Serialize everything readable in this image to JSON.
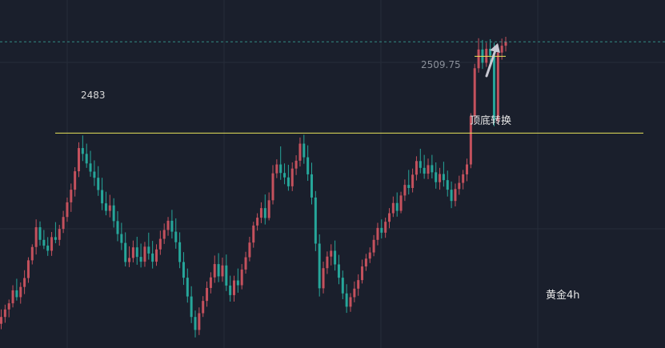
{
  "chart_data": {
    "type": "candlestick",
    "title": "黄金4h",
    "colors": {
      "background": "#1a1f2c",
      "up": "#c4515d",
      "down": "#26a69a",
      "level_line": "#e8e35a",
      "current_price_line": "#3aa89a",
      "arrow": "#c8c8d2",
      "grid": "#262c3a"
    },
    "price_range": [
      2420,
      2522
    ],
    "grid": true,
    "annotations": {
      "level_label": "2483",
      "level_value": 2483,
      "current_price_label": "2509.75",
      "current_price_value": 2509.75,
      "note": "顶底转换",
      "minor_level_value": 2505.5
    },
    "candles": [
      [
        2427.1,
        2431.3,
        2425.5,
        2429.1
      ],
      [
        2429.1,
        2432.7,
        2427.4,
        2431.3
      ],
      [
        2431.3,
        2434.2,
        2429.0,
        2433.1
      ],
      [
        2433.1,
        2438.4,
        2431.9,
        2436.9
      ],
      [
        2436.9,
        2440.3,
        2433.9,
        2434.9
      ],
      [
        2434.9,
        2439.2,
        2433.0,
        2437.9
      ],
      [
        2437.9,
        2442.8,
        2435.8,
        2440.5
      ],
      [
        2440.5,
        2446.6,
        2439.1,
        2445.7
      ],
      [
        2445.7,
        2450.4,
        2444.5,
        2449.6
      ],
      [
        2449.6,
        2457.7,
        2447.4,
        2455.4
      ],
      [
        2455.4,
        2457.1,
        2450.0,
        2451.7
      ],
      [
        2451.7,
        2454.6,
        2449.0,
        2450.0
      ],
      [
        2450.0,
        2452.5,
        2447.0,
        2448.5
      ],
      [
        2448.5,
        2454.0,
        2447.0,
        2452.5
      ],
      [
        2452.5,
        2456.9,
        2450.7,
        2451.7
      ],
      [
        2451.7,
        2456.1,
        2450.0,
        2454.9
      ],
      [
        2454.9,
        2460.2,
        2453.7,
        2458.4
      ],
      [
        2458.4,
        2464.1,
        2457.0,
        2462.7
      ],
      [
        2462.7,
        2468.2,
        2459.9,
        2466.4
      ],
      [
        2466.4,
        2473.0,
        2464.4,
        2471.8
      ],
      [
        2471.8,
        2480.3,
        2470.1,
        2478.6
      ],
      [
        2478.6,
        2482.3,
        2474.8,
        2476.9
      ],
      [
        2476.9,
        2479.9,
        2472.8,
        2474.1
      ],
      [
        2474.1,
        2477.8,
        2470.2,
        2471.7
      ],
      [
        2471.7,
        2475.0,
        2467.5,
        2469.9
      ],
      [
        2469.9,
        2473.3,
        2464.6,
        2466.3
      ],
      [
        2466.3,
        2469.9,
        2460.4,
        2462.4
      ],
      [
        2462.4,
        2465.8,
        2458.9,
        2460.2
      ],
      [
        2460.2,
        2464.9,
        2458.3,
        2461.8
      ],
      [
        2461.8,
        2463.9,
        2455.3,
        2457.2
      ],
      [
        2457.2,
        2460.1,
        2451.3,
        2453.4
      ],
      [
        2453.4,
        2456.7,
        2448.7,
        2450.8
      ],
      [
        2450.8,
        2453.9,
        2443.9,
        2445.2
      ],
      [
        2445.2,
        2449.8,
        2443.7,
        2446.4
      ],
      [
        2446.4,
        2451.5,
        2445.1,
        2449.5
      ],
      [
        2449.5,
        2452.6,
        2444.4,
        2446.7
      ],
      [
        2446.7,
        2450.6,
        2443.6,
        2445.3
      ],
      [
        2445.3,
        2451.1,
        2443.8,
        2449.7
      ],
      [
        2449.7,
        2453.8,
        2445.9,
        2447.7
      ],
      [
        2447.7,
        2451.4,
        2443.3,
        2445.3
      ],
      [
        2445.3,
        2450.4,
        2444.1,
        2448.9
      ],
      [
        2448.9,
        2454.4,
        2447.3,
        2452.0
      ],
      [
        2452.0,
        2456.5,
        2450.5,
        2454.6
      ],
      [
        2454.6,
        2458.4,
        2452.9,
        2457.3
      ],
      [
        2457.3,
        2460.5,
        2452.1,
        2454.1
      ],
      [
        2454.1,
        2458.0,
        2449.1,
        2451.0
      ],
      [
        2451.0,
        2453.9,
        2443.4,
        2445.2
      ],
      [
        2445.2,
        2448.1,
        2438.5,
        2440.6
      ],
      [
        2440.6,
        2443.3,
        2433.3,
        2435.1
      ],
      [
        2435.1,
        2438.1,
        2427.3,
        2429.1
      ],
      [
        2429.1,
        2431.0,
        2423.1,
        2425.3
      ],
      [
        2425.3,
        2431.9,
        2423.8,
        2430.2
      ],
      [
        2430.2,
        2435.2,
        2429.1,
        2433.8
      ],
      [
        2433.8,
        2439.5,
        2432.1,
        2437.6
      ],
      [
        2437.6,
        2442.2,
        2436.0,
        2440.7
      ],
      [
        2440.7,
        2447.1,
        2439.1,
        2444.6
      ],
      [
        2444.6,
        2447.8,
        2439.3,
        2441.0
      ],
      [
        2441.0,
        2446.5,
        2439.4,
        2444.2
      ],
      [
        2444.2,
        2447.4,
        2436.7,
        2438.3
      ],
      [
        2438.3,
        2441.2,
        2433.6,
        2435.5
      ],
      [
        2435.5,
        2441.2,
        2433.6,
        2439.8
      ],
      [
        2439.8,
        2443.3,
        2436.2,
        2438.4
      ],
      [
        2438.4,
        2444.6,
        2437.2,
        2443.0
      ],
      [
        2443.0,
        2448.2,
        2441.8,
        2446.6
      ],
      [
        2446.6,
        2452.6,
        2445.4,
        2450.9
      ],
      [
        2450.9,
        2457.0,
        2449.4,
        2455.9
      ],
      [
        2455.9,
        2459.5,
        2454.4,
        2458.2
      ],
      [
        2458.2,
        2462.7,
        2456.6,
        2461.0
      ],
      [
        2461.0,
        2465.0,
        2456.2,
        2458.1
      ],
      [
        2458.1,
        2465.6,
        2457.4,
        2463.3
      ],
      [
        2463.3,
        2473.6,
        2462.1,
        2471.2
      ],
      [
        2471.2,
        2475.3,
        2469.8,
        2473.8
      ],
      [
        2473.8,
        2479.1,
        2469.3,
        2471.3
      ],
      [
        2471.3,
        2474.1,
        2468.0,
        2470.0
      ],
      [
        2470.0,
        2473.7,
        2466.1,
        2467.4
      ],
      [
        2467.4,
        2474.4,
        2466.0,
        2472.6
      ],
      [
        2472.6,
        2476.5,
        2470.7,
        2474.9
      ],
      [
        2474.9,
        2481.7,
        2473.2,
        2479.9
      ],
      [
        2479.9,
        2482.5,
        2474.0,
        2475.9
      ],
      [
        2475.9,
        2479.4,
        2469.0,
        2470.9
      ],
      [
        2470.9,
        2474.3,
        2462.1,
        2464.1
      ],
      [
        2464.1,
        2466.0,
        2448.4,
        2450.6
      ],
      [
        2450.6,
        2453.3,
        2435.1,
        2437.5
      ],
      [
        2437.5,
        2445.3,
        2436.0,
        2443.4
      ],
      [
        2443.4,
        2448.3,
        2441.7,
        2446.8
      ],
      [
        2446.8,
        2450.4,
        2444.2,
        2448.5
      ],
      [
        2448.5,
        2451.5,
        2442.7,
        2444.5
      ],
      [
        2444.5,
        2447.3,
        2438.7,
        2440.6
      ],
      [
        2440.6,
        2442.7,
        2434.3,
        2436.0
      ],
      [
        2436.0,
        2438.7,
        2430.3,
        2432.1
      ],
      [
        2432.1,
        2436.1,
        2430.6,
        2434.9
      ],
      [
        2434.9,
        2439.5,
        2433.4,
        2437.4
      ],
      [
        2437.4,
        2441.6,
        2435.3,
        2439.9
      ],
      [
        2439.9,
        2445.9,
        2438.9,
        2443.9
      ],
      [
        2443.9,
        2447.6,
        2442.6,
        2446.2
      ],
      [
        2446.2,
        2449.5,
        2444.9,
        2448.0
      ],
      [
        2448.0,
        2453.1,
        2446.9,
        2451.7
      ],
      [
        2451.7,
        2456.7,
        2450.1,
        2455.2
      ],
      [
        2455.2,
        2457.7,
        2452.1,
        2453.8
      ],
      [
        2453.8,
        2458.2,
        2452.3,
        2457.0
      ],
      [
        2457.0,
        2461.0,
        2455.1,
        2459.5
      ],
      [
        2459.5,
        2464.4,
        2458.4,
        2462.5
      ],
      [
        2462.5,
        2465.6,
        2458.5,
        2460.2
      ],
      [
        2460.2,
        2465.8,
        2459.5,
        2464.7
      ],
      [
        2464.7,
        2469.4,
        2463.1,
        2467.8
      ],
      [
        2467.8,
        2472.2,
        2465.0,
        2466.9
      ],
      [
        2466.9,
        2472.6,
        2465.6,
        2470.8
      ],
      [
        2470.8,
        2476.2,
        2469.1,
        2474.8
      ],
      [
        2474.8,
        2478.4,
        2471.2,
        2472.8
      ],
      [
        2472.8,
        2476.6,
        2469.6,
        2471.1
      ],
      [
        2471.1,
        2475.5,
        2469.5,
        2473.6
      ],
      [
        2473.6,
        2476.6,
        2469.7,
        2471.5
      ],
      [
        2471.5,
        2474.4,
        2466.7,
        2468.6
      ],
      [
        2468.6,
        2472.8,
        2466.4,
        2471.0
      ],
      [
        2471.0,
        2474.6,
        2467.3,
        2469.2
      ],
      [
        2469.2,
        2472.0,
        2464.4,
        2466.4
      ],
      [
        2466.4,
        2468.8,
        2461.0,
        2463.1
      ],
      [
        2463.1,
        2468.2,
        2461.5,
        2466.6
      ],
      [
        2466.6,
        2470.5,
        2464.9,
        2468.4
      ],
      [
        2468.4,
        2472.2,
        2466.5,
        2470.9
      ],
      [
        2470.9,
        2475.5,
        2468.9,
        2473.8
      ],
      [
        2473.8,
        2488.8,
        2472.7,
        2487.9
      ],
      [
        2487.9,
        2503.3,
        2485.9,
        2502.0
      ],
      [
        2502.0,
        2510.8,
        2500.7,
        2507.5
      ],
      [
        2507.5,
        2510.3,
        2501.8,
        2503.6
      ],
      [
        2503.6,
        2509.5,
        2502.4,
        2507.7
      ],
      [
        2507.7,
        2510.5,
        2503.4,
        2505.7
      ],
      [
        2505.7,
        2509.5,
        2485.0,
        2486.7
      ],
      [
        2486.7,
        2508.9,
        2485.6,
        2506.6
      ],
      [
        2506.6,
        2510.7,
        2504.5,
        2508.6
      ],
      [
        2508.6,
        2511.2,
        2506.9,
        2509.75
      ]
    ]
  }
}
